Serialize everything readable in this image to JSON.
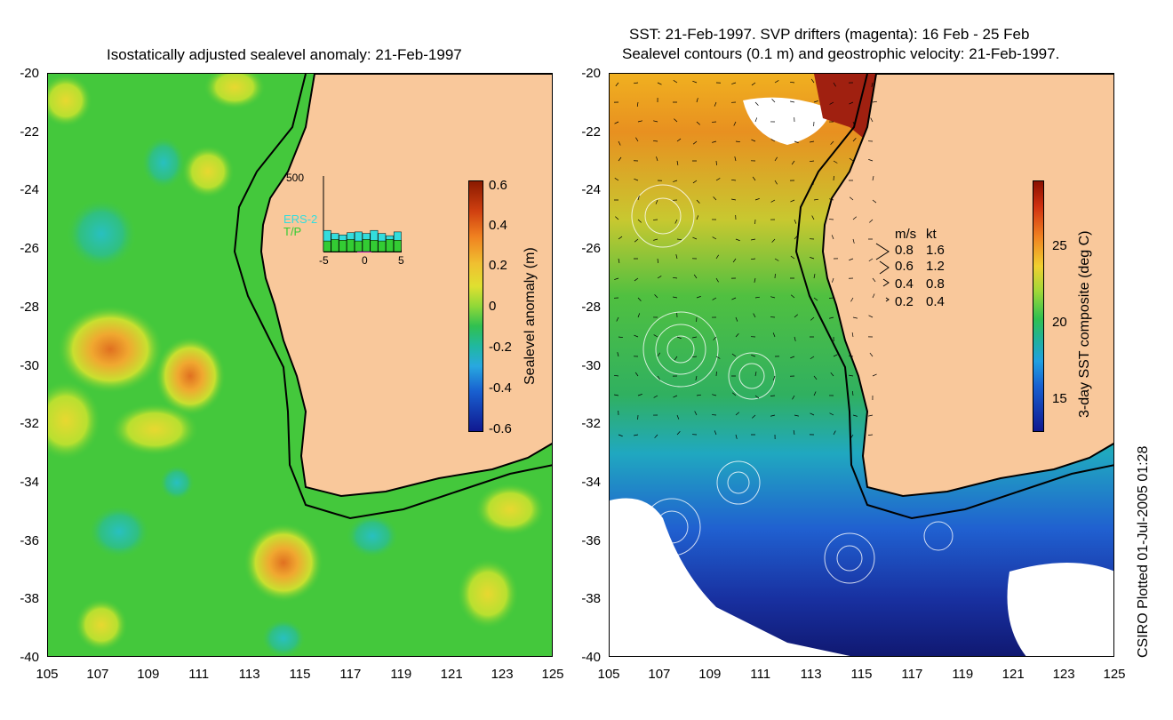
{
  "left_panel": {
    "title": "Isostatically adjusted sealevel anomaly: 21-Feb-1997",
    "colorbar_title": "Sealevel anomaly (m)",
    "colorbar_ticks": [
      "0.6",
      "0.4",
      "0.2",
      "0",
      "-0.2",
      "-0.4",
      "-0.6"
    ],
    "inset": {
      "ymax_label": "500",
      "series_labels": [
        "ERS-2",
        "T/P"
      ],
      "series_colors": [
        "#33dddd",
        "#33cc33"
      ],
      "x_ticks": [
        "-5",
        "0",
        "5"
      ],
      "bar_values_ers2": [
        140,
        120,
        110,
        125,
        130,
        120,
        140,
        120,
        105,
        130
      ],
      "bar_values_tp": [
        70,
        80,
        75,
        80,
        70,
        80,
        75,
        70,
        80,
        75
      ]
    }
  },
  "right_panel": {
    "title_line1": "SST: 21-Feb-1997. SVP drifters (magenta): 16 Feb - 25 Feb",
    "title_line2": "Sealevel contours (0.1 m) and geostrophic velocity: 21-Feb-1997.",
    "colorbar_title": "3-day SST composite (deg C)",
    "colorbar_ticks": [
      "25",
      "20",
      "15"
    ],
    "legend": {
      "header_ms": "m/s",
      "header_kt": "kt",
      "rows": [
        {
          "ms": "0.8",
          "kt": "1.6"
        },
        {
          "ms": "0.6",
          "kt": "1.2"
        },
        {
          "ms": "0.4",
          "kt": "0.8"
        },
        {
          "ms": "0.2",
          "kt": "0.4"
        }
      ]
    }
  },
  "axes": {
    "y_ticks": [
      "-20",
      "-22",
      "-24",
      "-26",
      "-28",
      "-30",
      "-32",
      "-34",
      "-36",
      "-38",
      "-40"
    ],
    "x_ticks": [
      "105",
      "107",
      "109",
      "111",
      "113",
      "115",
      "117",
      "119",
      "121",
      "123",
      "125"
    ]
  },
  "credit": "CSIRO Plotted 01-Jul-2005 01:28",
  "colors": {
    "land": "#f9c89b",
    "sla_background": "#44c83c",
    "coast_line": "#000000"
  }
}
